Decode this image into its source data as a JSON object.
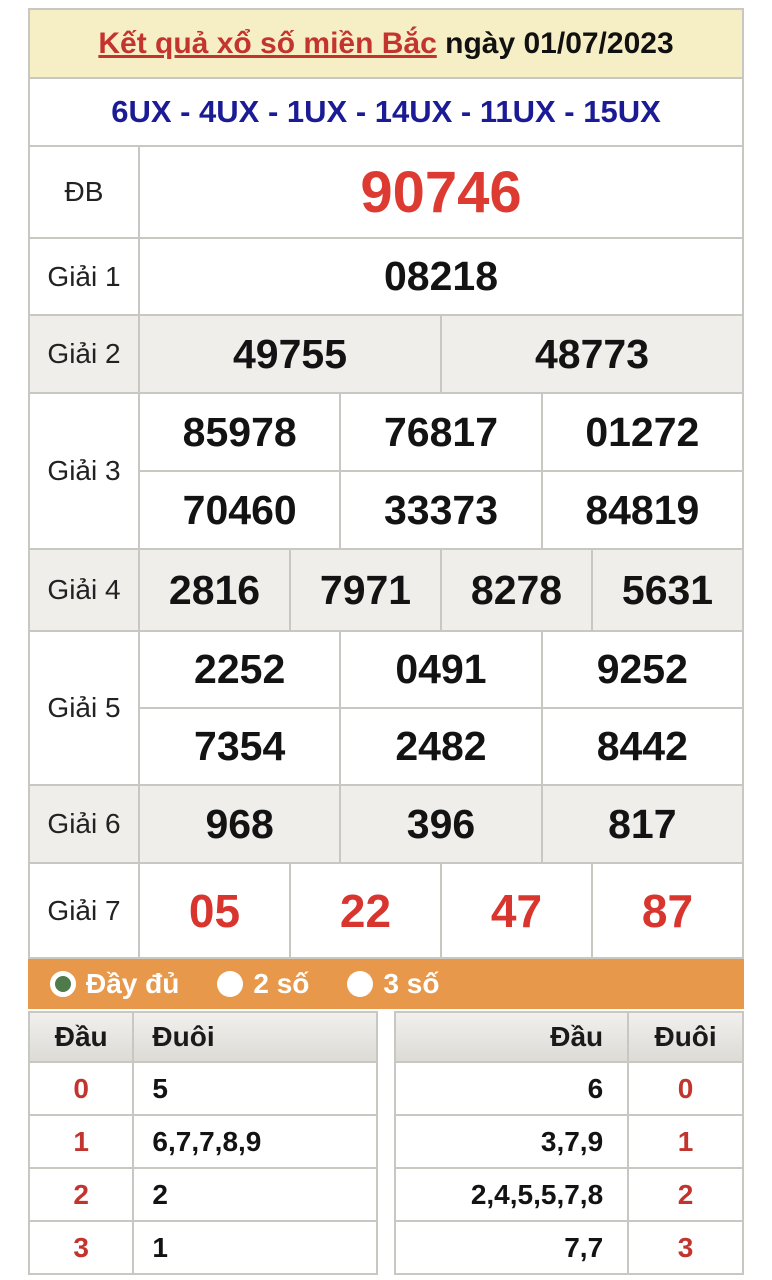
{
  "colors": {
    "header_bg": "#f6efc6",
    "title_red": "#c4342e",
    "ux_blue": "#1b1b96",
    "big_red": "#dd3a31",
    "g7_red": "#d8352e",
    "filter_orange": "#e8984a",
    "radio_green": "#4f7a4c",
    "tail_red": "#c2352e",
    "border_gray": "#c8c7c2",
    "shade_gray": "#efeeeb"
  },
  "header": {
    "title_link": "Kết quả xổ số miền Bắc",
    "title_date": " ngày 01/07/2023"
  },
  "ux_line": {
    "text": "6UX - 4UX - 1UX - 14UX - 11UX - 15UX"
  },
  "results": {
    "rows": [
      {
        "label": "ĐB",
        "style": "special",
        "shade": false,
        "groups": [
          [
            "90746"
          ]
        ]
      },
      {
        "label": "Giải 1",
        "style": "normal",
        "shade": false,
        "groups": [
          [
            "08218"
          ]
        ]
      },
      {
        "label": "Giải 2",
        "style": "normal",
        "shade": true,
        "groups": [
          [
            "49755",
            "48773"
          ]
        ]
      },
      {
        "label": "Giải 3",
        "style": "normal",
        "shade": false,
        "groups": [
          [
            "85978",
            "76817",
            "01272"
          ],
          [
            "70460",
            "33373",
            "84819"
          ]
        ]
      },
      {
        "label": "Giải 4",
        "style": "normal",
        "shade": true,
        "groups": [
          [
            "2816",
            "7971",
            "8278",
            "5631"
          ]
        ]
      },
      {
        "label": "Giải 5",
        "style": "normal",
        "shade": false,
        "groups": [
          [
            "2252",
            "0491",
            "9252"
          ],
          [
            "7354",
            "2482",
            "8442"
          ]
        ]
      },
      {
        "label": "Giải 6",
        "style": "normal",
        "shade": true,
        "groups": [
          [
            "968",
            "396",
            "817"
          ]
        ]
      },
      {
        "label": "Giải 7",
        "style": "red",
        "shade": false,
        "groups": [
          [
            "05",
            "22",
            "47",
            "87"
          ]
        ]
      }
    ]
  },
  "filter_bar": {
    "options": [
      {
        "id": "day-du",
        "label": "Đầy đủ",
        "selected": true
      },
      {
        "id": "2-so",
        "label": "2 số",
        "selected": false
      },
      {
        "id": "3-so",
        "label": "3 số",
        "selected": false
      }
    ]
  },
  "head_tail": {
    "left": {
      "headers": [
        "Đầu",
        "Đuôi"
      ],
      "rows": [
        [
          "0",
          "5"
        ],
        [
          "1",
          "6,7,7,8,9"
        ],
        [
          "2",
          "2"
        ],
        [
          "3",
          "1"
        ]
      ]
    },
    "right": {
      "headers": [
        "Đầu",
        "Đuôi"
      ],
      "rows": [
        [
          "6",
          "0"
        ],
        [
          "3,7,9",
          "1"
        ],
        [
          "2,4,5,5,7,8",
          "2"
        ],
        [
          "7,7",
          "3"
        ]
      ]
    }
  }
}
